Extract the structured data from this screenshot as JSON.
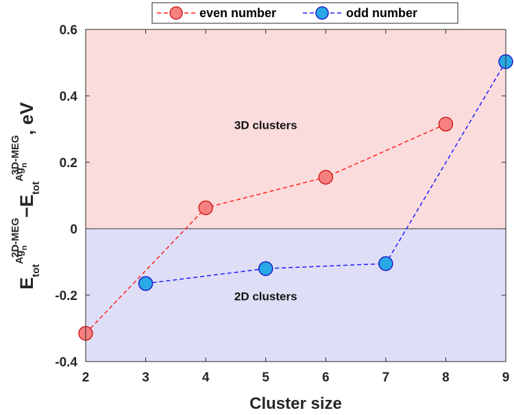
{
  "chart_data": {
    "type": "line",
    "xlabel": "Cluster size",
    "ylabel": {
      "e1": "E",
      "tot1": "tot",
      "ag1": "Ag",
      "n1": "n",
      "sup1": "2D",
      "meg1": "-MEG",
      "minus": "−",
      "e2": "E",
      "tot2": "tot",
      "ag2": "Ag",
      "n2": "n",
      "sup2": "3D",
      "meg2": "-MEG",
      "unit": ", eV"
    },
    "xlim": [
      2,
      9
    ],
    "ylim": [
      -0.4,
      0.6
    ],
    "xticks": [
      "2",
      "3",
      "4",
      "5",
      "6",
      "7",
      "8",
      "9"
    ],
    "yticks": [
      "-0.4",
      "-0.2",
      "0",
      "0.2",
      "0.4",
      "0.6"
    ],
    "regions": [
      {
        "label": "3D clusters",
        "y_from": 0,
        "y_to": 0.6,
        "color": "#fbdcdc",
        "label_x": 5,
        "label_y": 0.3
      },
      {
        "label": "2D clusters",
        "y_from": -0.4,
        "y_to": 0,
        "color": "#dedef7",
        "label_x": 5,
        "label_y": -0.215
      }
    ],
    "series": [
      {
        "name": "even number",
        "x": [
          2,
          4,
          6,
          8
        ],
        "y": [
          -0.315,
          0.063,
          0.155,
          0.315
        ],
        "line_color": "#ff1a1a",
        "marker_fill": "#f78080",
        "marker_edge": "#cc2020"
      },
      {
        "name": "odd number",
        "x": [
          3,
          5,
          7,
          9
        ],
        "y": [
          -0.165,
          -0.12,
          -0.105,
          0.503
        ],
        "line_color": "#1a1aff",
        "marker_fill": "#29a8e6",
        "marker_edge": "#1a1acc"
      }
    ],
    "legend": {
      "position": "top-center",
      "orientation": "horizontal"
    }
  }
}
